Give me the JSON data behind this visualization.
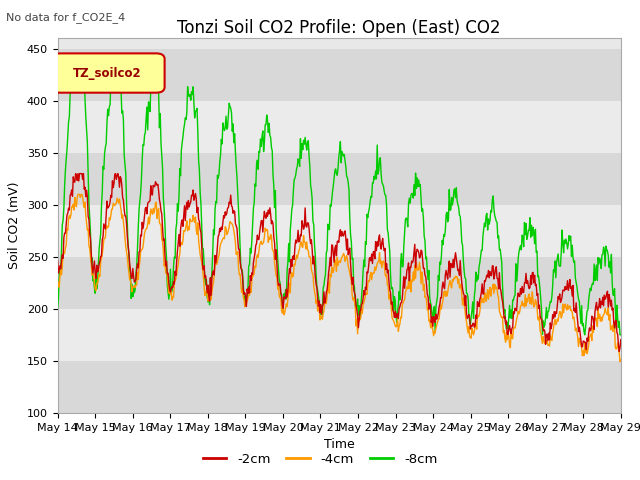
{
  "title": "Tonzi Soil CO2 Profile: Open (East) CO2",
  "subtitle": "No data for f_CO2E_4",
  "ylabel": "Soil CO2 (mV)",
  "xlabel": "Time",
  "legend_label": "TZ_soilco2",
  "series_labels": [
    "-2cm",
    "-4cm",
    "-8cm"
  ],
  "series_colors": [
    "#cc0000",
    "#ff9900",
    "#00cc00"
  ],
  "ylim": [
    100,
    460
  ],
  "yticks": [
    100,
    150,
    200,
    250,
    300,
    350,
    400,
    450
  ],
  "background_color": "#ffffff",
  "plot_bg_color": "#e8e8e8",
  "band_colors": [
    "#d8d8d8",
    "#ebebeb"
  ],
  "band_ranges": [
    [
      100,
      150
    ],
    [
      150,
      200
    ],
    [
      200,
      250
    ],
    [
      250,
      300
    ],
    [
      300,
      350
    ],
    [
      350,
      400
    ],
    [
      400,
      450
    ]
  ],
  "title_fontsize": 12,
  "axis_fontsize": 9,
  "tick_fontsize": 8,
  "figsize": [
    6.4,
    4.8
  ],
  "dpi": 100
}
